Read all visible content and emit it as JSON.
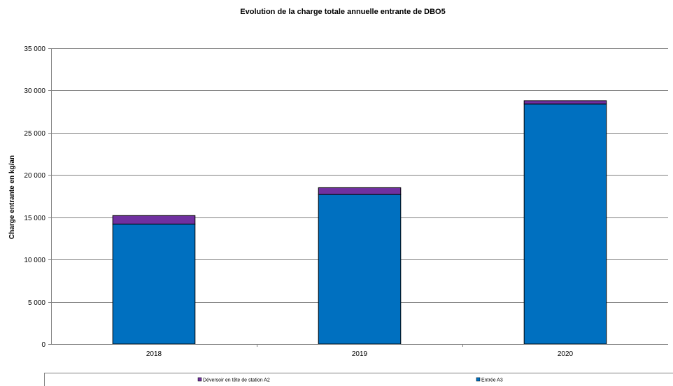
{
  "chart_data": {
    "type": "bar",
    "stacked": true,
    "title": "Evolution de la charge totale annuelle entrante de DBO5",
    "ylabel": "Charge entrante en kg/an",
    "xlabel": "",
    "categories": [
      "2018",
      "2019",
      "2020"
    ],
    "ylim": [
      0,
      35000
    ],
    "yticks": [
      0,
      5000,
      10000,
      15000,
      20000,
      25000,
      30000,
      35000
    ],
    "ytick_labels": [
      "0",
      "5 000",
      "10 000",
      "15 000",
      "20 000",
      "25 000",
      "30 000",
      "35 000"
    ],
    "grid": true,
    "legend_position": "bottom",
    "series": [
      {
        "name": "Entrée A3",
        "color": "#0070C0",
        "values": [
          14200,
          17700,
          28400
        ]
      },
      {
        "name": "Déversoir en tête de station A2",
        "color": "#7030A0",
        "values": [
          1000,
          800,
          400
        ]
      }
    ],
    "legend_order": [
      1,
      0
    ]
  }
}
